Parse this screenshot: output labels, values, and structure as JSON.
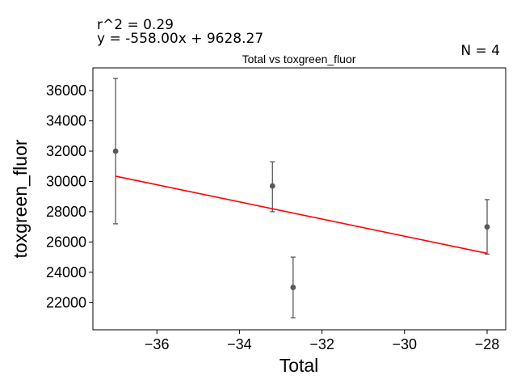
{
  "chart_data": {
    "type": "scatter",
    "title": "Total vs toxgreen_fluor",
    "xlabel": "Total",
    "ylabel": "toxgreen_fluor",
    "xlim": [
      -37.55,
      -27.55
    ],
    "ylim": [
      20200,
      37500
    ],
    "xticks": [
      -36,
      -34,
      -32,
      -30,
      -28
    ],
    "xtick_labels": [
      "−36",
      "−34",
      "−32",
      "−30",
      "−28"
    ],
    "yticks": [
      22000,
      24000,
      26000,
      28000,
      30000,
      32000,
      34000,
      36000
    ],
    "ytick_labels": [
      "22000",
      "24000",
      "26000",
      "28000",
      "30000",
      "32000",
      "34000",
      "36000"
    ],
    "grid": false,
    "points": [
      {
        "x": -37.0,
        "y": 32000,
        "err_low": 27200,
        "err_high": 36800
      },
      {
        "x": -33.2,
        "y": 29700,
        "err_low": 28000,
        "err_high": 31300
      },
      {
        "x": -32.7,
        "y": 23000,
        "err_low": 21000,
        "err_high": 25000
      },
      {
        "x": -28.0,
        "y": 27000,
        "err_low": 25200,
        "err_high": 28800
      }
    ],
    "fit_line": {
      "x": [
        -37.0,
        -28.0
      ],
      "y": [
        30350,
        25250
      ],
      "color": "#ff0000"
    },
    "point_color": "#595959",
    "annotations": {
      "r2": "r^2 = 0.29",
      "equation": "y = -558.00x + 9628.27",
      "n": "N = 4"
    }
  }
}
